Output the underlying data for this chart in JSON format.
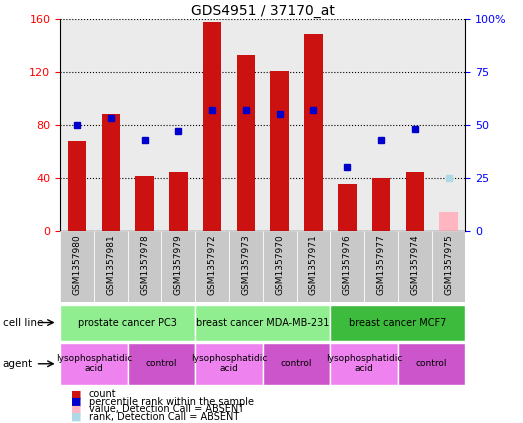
{
  "title": "GDS4951 / 37170_at",
  "samples": [
    "GSM1357980",
    "GSM1357981",
    "GSM1357978",
    "GSM1357979",
    "GSM1357972",
    "GSM1357973",
    "GSM1357970",
    "GSM1357971",
    "GSM1357976",
    "GSM1357977",
    "GSM1357974",
    "GSM1357975"
  ],
  "counts": [
    68,
    88,
    41,
    44,
    158,
    133,
    121,
    149,
    35,
    40,
    44,
    null
  ],
  "ranks": [
    50,
    53,
    43,
    47,
    57,
    57,
    55,
    57,
    30,
    43,
    48,
    null
  ],
  "absent_count": [
    null,
    null,
    null,
    null,
    null,
    null,
    null,
    null,
    null,
    null,
    null,
    14
  ],
  "absent_rank": [
    null,
    null,
    null,
    null,
    null,
    null,
    null,
    null,
    null,
    null,
    null,
    25
  ],
  "cell_lines": [
    {
      "label": "prostate cancer PC3",
      "start": 0,
      "end": 4,
      "color": "#90ee90"
    },
    {
      "label": "breast cancer MDA-MB-231",
      "start": 4,
      "end": 8,
      "color": "#90ee90"
    },
    {
      "label": "breast cancer MCF7",
      "start": 8,
      "end": 12,
      "color": "#3dbb3d"
    }
  ],
  "agents": [
    {
      "label": "lysophosphatidic\nacid",
      "start": 0,
      "end": 2,
      "color": "#ee82ee"
    },
    {
      "label": "control",
      "start": 2,
      "end": 4,
      "color": "#cc55cc"
    },
    {
      "label": "lysophosphatidic\nacid",
      "start": 4,
      "end": 6,
      "color": "#ee82ee"
    },
    {
      "label": "control",
      "start": 6,
      "end": 8,
      "color": "#cc55cc"
    },
    {
      "label": "lysophosphatidic\nacid",
      "start": 8,
      "end": 10,
      "color": "#ee82ee"
    },
    {
      "label": "control",
      "start": 10,
      "end": 12,
      "color": "#cc55cc"
    }
  ],
  "ylim_left": [
    0,
    160
  ],
  "ylim_right": [
    0,
    100
  ],
  "yticks_left": [
    0,
    40,
    80,
    120,
    160
  ],
  "yticks_right": [
    0,
    25,
    50,
    75,
    100
  ],
  "bar_color": "#cc1111",
  "rank_color": "#0000cc",
  "absent_bar_color": "#ffb6c1",
  "absent_rank_color": "#add8e6",
  "bar_width": 0.55,
  "col_bg_color": "#c8c8c8",
  "fig_width": 5.23,
  "fig_height": 4.23,
  "dpi": 100
}
